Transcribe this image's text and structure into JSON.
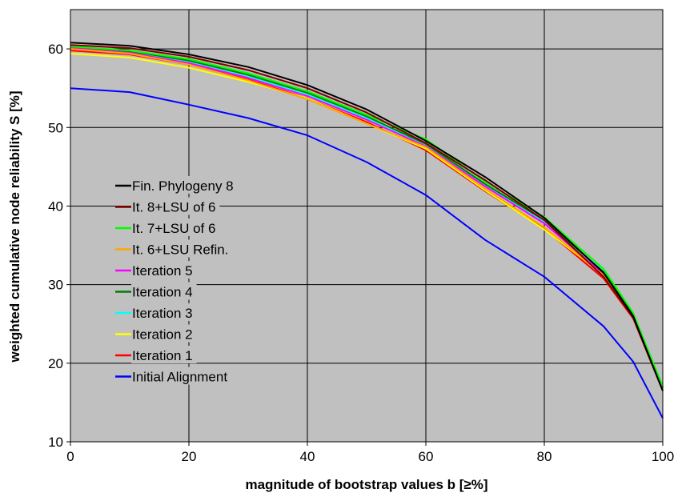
{
  "chart_data": {
    "type": "line",
    "title": "",
    "xlabel": "magnitude of bootstrap values b [≥%]",
    "ylabel": "weighted cumulative node reliability S [%]",
    "xlim": [
      0,
      100
    ],
    "ylim": [
      10,
      65
    ],
    "x_ticks": [
      "0",
      "20",
      "40",
      "60",
      "80",
      "100"
    ],
    "y_ticks": [
      "10",
      "20",
      "30",
      "40",
      "50",
      "60"
    ],
    "grid": "major, both axes",
    "plot_background": "#c0c0c0",
    "legend_position": "left-center inside plot",
    "x": [
      0,
      10,
      20,
      30,
      40,
      50,
      60,
      70,
      80,
      90,
      95,
      100
    ],
    "series": [
      {
        "name": "Fin. Phylogeny 8",
        "color": "#000000",
        "values": [
          60.8,
          60.4,
          59.3,
          57.7,
          55.4,
          52.3,
          48.3,
          43.7,
          38.5,
          31.5,
          26.0,
          16.5
        ]
      },
      {
        "name": "It. 8+LSU of 6",
        "color": "#800000",
        "values": [
          60.5,
          60.1,
          59.0,
          57.3,
          55.0,
          51.9,
          48.0,
          43.3,
          38.2,
          31.0,
          25.8,
          16.5
        ]
      },
      {
        "name": "It. 7+LSU of 6",
        "color": "#00ff00",
        "values": [
          60.3,
          59.8,
          58.7,
          56.9,
          54.6,
          51.6,
          48.5,
          43.1,
          38.6,
          32.0,
          26.4,
          17.0
        ]
      },
      {
        "name": "It. 6+LSU Refin.",
        "color": "#ffa500",
        "values": [
          60.0,
          59.4,
          58.0,
          56.0,
          53.6,
          50.5,
          47.5,
          42.2,
          37.3,
          31.2,
          25.9,
          16.8
        ]
      },
      {
        "name": "Iteration 5",
        "color": "#ff00ff",
        "values": [
          60.1,
          59.5,
          58.2,
          56.3,
          54.0,
          51.0,
          47.6,
          42.5,
          37.8,
          31.3,
          26.0,
          16.8
        ]
      },
      {
        "name": "Iteration 4",
        "color": "#008000",
        "values": [
          60.2,
          59.7,
          58.5,
          56.7,
          54.4,
          51.4,
          47.9,
          42.8,
          38.2,
          31.6,
          26.2,
          17.0
        ]
      },
      {
        "name": "Iteration 3",
        "color": "#00ffff",
        "values": [
          60.0,
          59.5,
          58.3,
          56.5,
          54.2,
          51.2,
          47.7,
          42.6,
          38.0,
          31.7,
          26.3,
          17.0
        ]
      },
      {
        "name": "Iteration 2",
        "color": "#ffff00",
        "values": [
          59.4,
          58.9,
          57.6,
          55.8,
          53.7,
          50.5,
          47.3,
          42.0,
          37.0,
          31.3,
          26.0,
          17.0
        ]
      },
      {
        "name": "Iteration 1",
        "color": "#ff0000",
        "values": [
          59.8,
          59.3,
          58.0,
          56.1,
          53.7,
          50.7,
          47.1,
          41.9,
          37.1,
          30.8,
          25.7,
          16.5
        ]
      },
      {
        "name": "Initial Alignment",
        "color": "#0000ff",
        "values": [
          55.0,
          54.5,
          52.9,
          51.2,
          49.0,
          45.6,
          41.4,
          35.7,
          31.0,
          24.7,
          20.2,
          13.0
        ]
      }
    ]
  }
}
